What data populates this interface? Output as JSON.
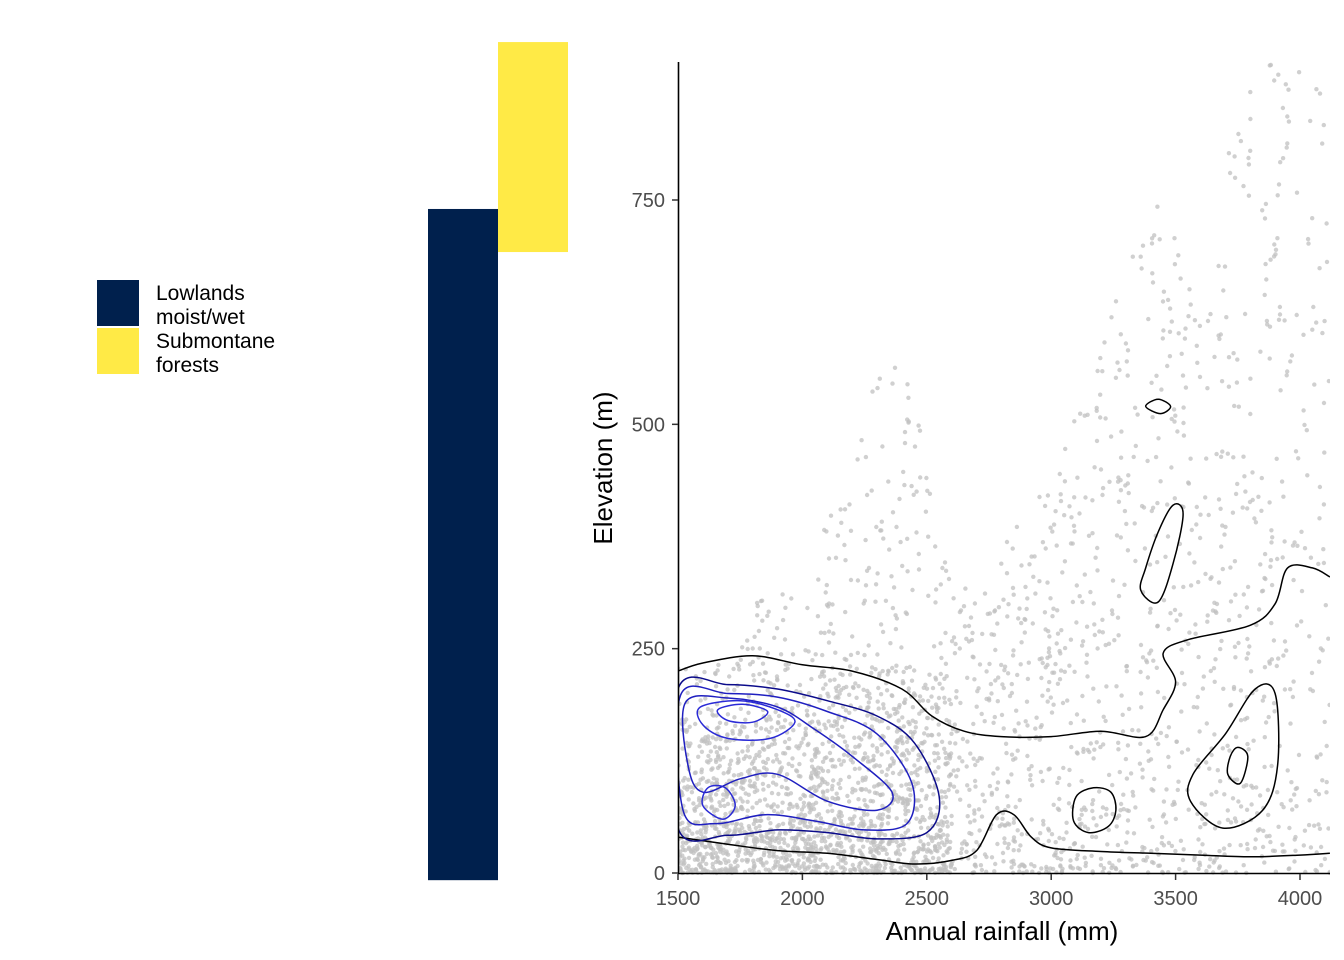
{
  "legend": {
    "items": [
      {
        "lines": [
          "Lowlands",
          "moist/wet"
        ],
        "color": "#00204d"
      },
      {
        "lines": [
          "Submontane",
          "forests"
        ],
        "color": "#ffea46"
      }
    ]
  },
  "chart_data": [
    {
      "type": "bar",
      "description_source": "elevation range bars per forest type",
      "series": [
        {
          "name": "Lowlands moist/wet",
          "color": "#00204d",
          "y_min": -8,
          "y_max": 740
        },
        {
          "name": "Submontane forests",
          "color": "#ffea46",
          "y_min": 692,
          "y_max": 926
        }
      ],
      "ylim": [
        0,
        900
      ]
    },
    {
      "type": "scatter",
      "xlabel": "Annual rainfall (mm)",
      "ylabel": "Elevation (m)",
      "xlim": [
        1500,
        4120
      ],
      "ylim": [
        0,
        900
      ],
      "x_ticks": [
        1500,
        2000,
        2500,
        3000,
        3500,
        4000
      ],
      "y_ticks": [
        0,
        250,
        500,
        750
      ],
      "point_color": "#c0c0c0",
      "grid": false,
      "overlay": "2D density contours (blue for highest-density region near 1500–2600 mm, black elsewhere)",
      "contours": [
        {
          "color": "#000000",
          "points": [
            [
              1500,
              225
            ],
            [
              1600,
              234
            ],
            [
              1800,
              242
            ],
            [
              2000,
              232
            ],
            [
              2200,
              225
            ],
            [
              2400,
              205
            ],
            [
              2520,
              175
            ],
            [
              2650,
              158
            ],
            [
              2800,
              152
            ],
            [
              3000,
              152
            ],
            [
              3200,
              158
            ],
            [
              3380,
              152
            ],
            [
              3450,
              182
            ],
            [
              3500,
              213
            ],
            [
              3450,
              245
            ],
            [
              3550,
              260
            ],
            [
              3800,
              276
            ],
            [
              3900,
              300
            ],
            [
              3950,
              340
            ],
            [
              4050,
              340
            ],
            [
              4120,
              330
            ]
          ]
        },
        {
          "color": "#000000",
          "points": [
            [
              1500,
              40
            ],
            [
              1700,
              32
            ],
            [
              1900,
              25
            ],
            [
              2100,
              22
            ],
            [
              2300,
              15
            ],
            [
              2450,
              10
            ],
            [
              2600,
              14
            ],
            [
              2700,
              25
            ],
            [
              2780,
              65
            ],
            [
              2850,
              65
            ],
            [
              2920,
              40
            ],
            [
              3000,
              28
            ],
            [
              3200,
              24
            ],
            [
              3400,
              22
            ],
            [
              3600,
              20
            ],
            [
              3800,
              18
            ],
            [
              4000,
              20
            ],
            [
              4120,
              22
            ]
          ]
        },
        {
          "color": "#000000",
          "closed": true,
          "points": [
            [
              3090,
              58
            ],
            [
              3150,
              45
            ],
            [
              3230,
              52
            ],
            [
              3260,
              70
            ],
            [
              3240,
              90
            ],
            [
              3170,
              95
            ],
            [
              3100,
              85
            ]
          ]
        },
        {
          "color": "#000000",
          "closed": true,
          "points": [
            [
              3380,
              520
            ],
            [
              3430,
              528
            ],
            [
              3480,
              520
            ],
            [
              3440,
              512
            ]
          ]
        },
        {
          "color": "#000000",
          "closed": true,
          "points": [
            [
              3360,
              315
            ],
            [
              3430,
              302
            ],
            [
              3490,
              345
            ],
            [
              3530,
              400
            ],
            [
              3490,
              410
            ],
            [
              3430,
              380
            ],
            [
              3380,
              340
            ]
          ]
        },
        {
          "color": "#000000",
          "closed": true,
          "points": [
            [
              3560,
              80
            ],
            [
              3690,
              50
            ],
            [
              3850,
              70
            ],
            [
              3910,
              120
            ],
            [
              3900,
              200
            ],
            [
              3820,
              205
            ],
            [
              3700,
              155
            ],
            [
              3570,
              110
            ]
          ]
        },
        {
          "color": "#000000",
          "closed": true,
          "points": [
            [
              3710,
              110
            ],
            [
              3760,
              100
            ],
            [
              3790,
              130
            ],
            [
              3750,
              140
            ],
            [
              3720,
              130
            ]
          ]
        },
        {
          "color": "#0b0b8a",
          "closed": true,
          "points": [
            [
              1500,
              205
            ],
            [
              1700,
              210
            ],
            [
              1900,
              205
            ],
            [
              2100,
              192
            ],
            [
              2300,
              175
            ],
            [
              2450,
              145
            ],
            [
              2550,
              85
            ],
            [
              2500,
              45
            ],
            [
              2300,
              38
            ],
            [
              2100,
              45
            ],
            [
              1900,
              48
            ],
            [
              1700,
              42
            ],
            [
              1500,
              50
            ]
          ]
        },
        {
          "color": "#1f1fc0",
          "closed": true,
          "points": [
            [
              1510,
              198
            ],
            [
              1700,
              200
            ],
            [
              1900,
              196
            ],
            [
              2100,
              180
            ],
            [
              2300,
              155
            ],
            [
              2440,
              100
            ],
            [
              2420,
              55
            ],
            [
              2250,
              48
            ],
            [
              2050,
              58
            ],
            [
              1850,
              65
            ],
            [
              1650,
              55
            ],
            [
              1520,
              70
            ]
          ]
        },
        {
          "color": "#1f1fc0",
          "closed": true,
          "points": [
            [
              1530,
              190
            ],
            [
              1700,
              195
            ],
            [
              1900,
              185
            ],
            [
              2050,
              160
            ],
            [
              2200,
              130
            ],
            [
              2360,
              90
            ],
            [
              2300,
              70
            ],
            [
              2100,
              80
            ],
            [
              1900,
              110
            ],
            [
              1750,
              105
            ],
            [
              1600,
              90
            ],
            [
              1540,
              120
            ]
          ]
        },
        {
          "color": "#2a2ad6",
          "closed": true,
          "points": [
            [
              1590,
              185
            ],
            [
              1750,
              192
            ],
            [
              1900,
              182
            ],
            [
              1970,
              168
            ],
            [
              1870,
              150
            ],
            [
              1700,
              150
            ],
            [
              1600,
              165
            ]
          ]
        },
        {
          "color": "#2a2ad6",
          "closed": true,
          "points": [
            [
              1660,
              182
            ],
            [
              1760,
              188
            ],
            [
              1860,
              180
            ],
            [
              1800,
              168
            ],
            [
              1700,
              170
            ]
          ]
        },
        {
          "color": "#2a2ad6",
          "closed": true,
          "points": [
            [
              1600,
              75
            ],
            [
              1680,
              60
            ],
            [
              1730,
              75
            ],
            [
              1690,
              95
            ],
            [
              1620,
              95
            ]
          ]
        }
      ]
    }
  ]
}
